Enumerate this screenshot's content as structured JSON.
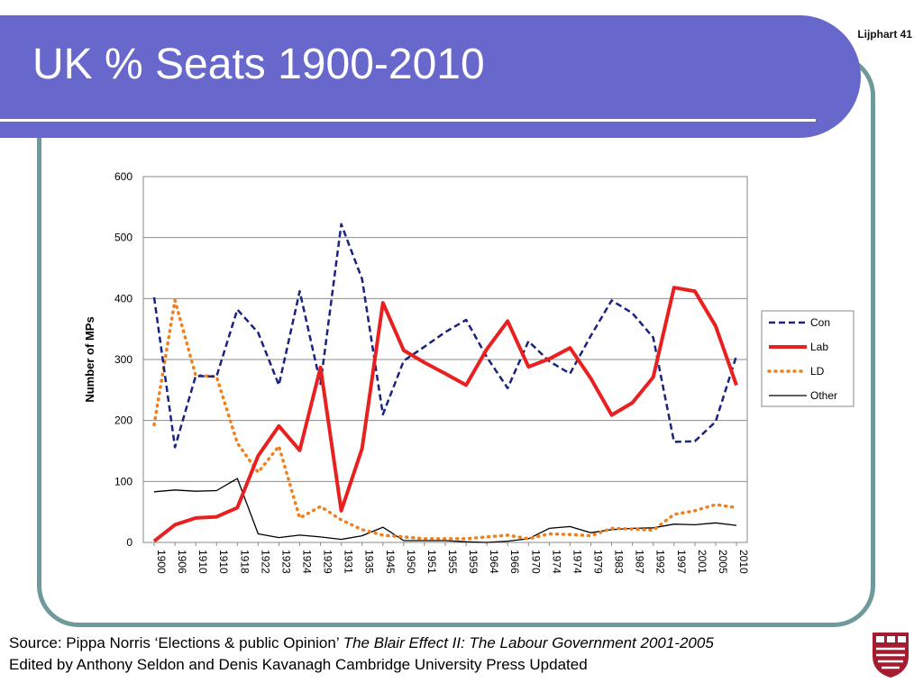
{
  "slide": {
    "title": "UK % Seats 1900-2010",
    "corner_label": "Lijphart 41",
    "source_line1_prefix": "Source: Pippa Norris ‘Elections & public Opinion’ ",
    "source_line1_italic": "The Blair Effect II: The Labour Government 2001-2005",
    "source_line2": "Edited by Anthony Seldon and Denis Kavanagh Cambridge University Press Updated",
    "logo_icon": "university-shield-icon"
  },
  "chart_data": {
    "type": "line",
    "title": "",
    "xlabel": "",
    "ylabel": "Number of MPs",
    "ylim": [
      0,
      600
    ],
    "yticks": [
      0,
      100,
      200,
      300,
      400,
      500,
      600
    ],
    "grid": true,
    "legend_position": "right",
    "categories": [
      "1900",
      "1906",
      "1910",
      "1910",
      "1918",
      "1922",
      "1923",
      "1924",
      "1929",
      "1931",
      "1935",
      "1945",
      "1950",
      "1951",
      "1955",
      "1959",
      "1964",
      "1966",
      "1970",
      "1974",
      "1974",
      "1979",
      "1983",
      "1987",
      "1992",
      "1997",
      "2001",
      "2005",
      "2010"
    ],
    "series": [
      {
        "name": "Con",
        "color": "#1a237e",
        "style": "dashed",
        "values": [
          402,
          156,
          273,
          272,
          382,
          344,
          258,
          412,
          260,
          522,
          432,
          210,
          298,
          321,
          345,
          365,
          304,
          253,
          330,
          297,
          277,
          339,
          397,
          376,
          336,
          165,
          166,
          198,
          306
        ]
      },
      {
        "name": "Lab",
        "color": "#e82020",
        "style": "solid-thick",
        "values": [
          2,
          29,
          40,
          42,
          57,
          142,
          191,
          151,
          287,
          52,
          154,
          393,
          315,
          295,
          277,
          258,
          317,
          363,
          288,
          301,
          319,
          269,
          209,
          229,
          271,
          418,
          412,
          355,
          258
        ]
      },
      {
        "name": "LD",
        "color": "#f07f1e",
        "style": "dotted",
        "values": [
          193,
          397,
          274,
          272,
          163,
          115,
          158,
          40,
          59,
          37,
          21,
          12,
          9,
          6,
          6,
          6,
          9,
          12,
          6,
          14,
          13,
          11,
          23,
          22,
          20,
          46,
          52,
          62,
          57
        ]
      },
      {
        "name": "Other",
        "color": "#000000",
        "style": "solid-thin",
        "values": [
          83,
          86,
          84,
          85,
          105,
          14,
          8,
          12,
          9,
          5,
          11,
          25,
          3,
          3,
          3,
          1,
          0,
          2,
          6,
          23,
          26,
          16,
          21,
          23,
          24,
          30,
          29,
          32,
          28
        ]
      }
    ]
  }
}
